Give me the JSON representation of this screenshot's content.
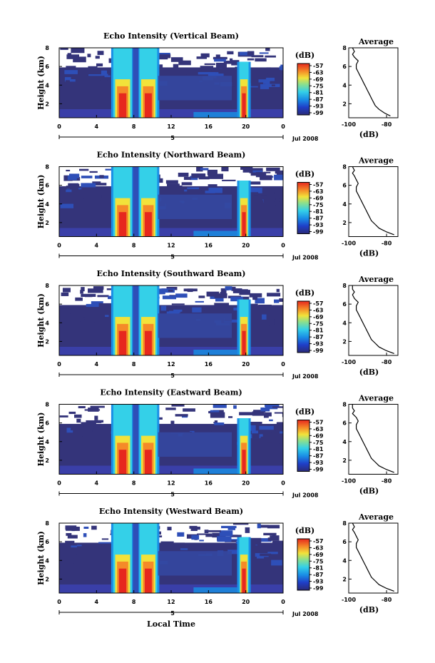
{
  "figure": {
    "xlabel_bottom": "Local Time",
    "date_label": "Jul 2008",
    "day_label": "5"
  },
  "colorbar": {
    "unit": "(dB)",
    "ticks": [
      "-57",
      "-63",
      "-69",
      "-75",
      "-81",
      "-87",
      "-93",
      "-99"
    ]
  },
  "chart_data": [
    {
      "type": "heatmap",
      "title": "Echo Intensity (Vertical Beam)",
      "ylabel": "Height (km)",
      "xticks": [
        "0",
        "4",
        "8",
        "12",
        "16",
        "20",
        "0"
      ],
      "xlim": [
        0,
        24
      ],
      "ylim": [
        0.5,
        8
      ],
      "yticks": [
        "2",
        "4",
        "6",
        "8"
      ],
      "color_range_db": [
        -99,
        -57
      ]
    },
    {
      "type": "heatmap",
      "title": "Echo Intensity (Northward Beam)",
      "ylabel": "Height (km)",
      "xticks": [
        "0",
        "4",
        "8",
        "12",
        "16",
        "20",
        "0"
      ],
      "xlim": [
        0,
        24
      ],
      "ylim": [
        0.5,
        8
      ],
      "yticks": [
        "2",
        "4",
        "6",
        "8"
      ],
      "color_range_db": [
        -99,
        -57
      ]
    },
    {
      "type": "heatmap",
      "title": "Echo Intensity (Southward Beam)",
      "ylabel": "Height (km)",
      "xticks": [
        "0",
        "4",
        "8",
        "12",
        "16",
        "20",
        "0"
      ],
      "xlim": [
        0,
        24
      ],
      "ylim": [
        0.5,
        8
      ],
      "yticks": [
        "2",
        "4",
        "6",
        "8"
      ],
      "color_range_db": [
        -99,
        -57
      ]
    },
    {
      "type": "heatmap",
      "title": "Echo Intensity (Eastward Beam)",
      "ylabel": "Height (km)",
      "xticks": [
        "0",
        "4",
        "8",
        "12",
        "16",
        "20",
        "0"
      ],
      "xlim": [
        0,
        24
      ],
      "ylim": [
        0.5,
        8
      ],
      "yticks": [
        "2",
        "4",
        "6",
        "8"
      ],
      "color_range_db": [
        -99,
        -57
      ]
    },
    {
      "type": "heatmap",
      "title": "Echo Intensity (Westward Beam)",
      "ylabel": "Height (km)",
      "xticks": [
        "0",
        "4",
        "8",
        "12",
        "16",
        "20",
        "0"
      ],
      "xlim": [
        0,
        24
      ],
      "ylim": [
        0.5,
        8
      ],
      "yticks": [
        "2",
        "4",
        "6",
        "8"
      ],
      "color_range_db": [
        -99,
        -57
      ]
    }
  ],
  "average_profiles": [
    {
      "type": "line",
      "title": "Average",
      "xlabel": "(dB)",
      "xticks": [
        "-100",
        "-80"
      ],
      "yticks": [
        "2",
        "4",
        "6",
        "8"
      ],
      "xlim": [
        -100,
        -74
      ],
      "ylim": [
        0.5,
        8
      ],
      "x": [
        -78,
        -81,
        -84,
        -86,
        -87,
        -88,
        -89,
        -90,
        -91,
        -92,
        -93,
        -94,
        -95,
        -96,
        -96,
        -95,
        -97,
        -98,
        -97,
        -98
      ],
      "y": [
        0.7,
        1.0,
        1.4,
        1.8,
        2.2,
        2.6,
        3.0,
        3.4,
        3.8,
        4.2,
        4.6,
        5.0,
        5.4,
        5.8,
        6.2,
        6.6,
        7.0,
        7.3,
        7.6,
        8.0
      ]
    },
    {
      "type": "line",
      "title": "Average",
      "xlabel": "(dB)",
      "xticks": [
        "-100",
        "-80"
      ],
      "yticks": [
        "2",
        "4",
        "6",
        "8"
      ],
      "xlim": [
        -100,
        -74
      ],
      "ylim": [
        0.5,
        8
      ],
      "x": [
        -76,
        -80,
        -84,
        -86,
        -88,
        -89,
        -90,
        -91,
        -92,
        -93,
        -94,
        -95,
        -96,
        -96,
        -95,
        -96,
        -97,
        -98,
        -97,
        -98
      ],
      "y": [
        0.7,
        1.0,
        1.4,
        1.8,
        2.2,
        2.6,
        3.0,
        3.4,
        3.8,
        4.2,
        4.6,
        5.0,
        5.4,
        5.8,
        6.2,
        6.6,
        7.0,
        7.3,
        7.6,
        8.0
      ]
    },
    {
      "type": "line",
      "title": "Average",
      "xlabel": "(dB)",
      "xticks": [
        "-100",
        "-80"
      ],
      "yticks": [
        "2",
        "4",
        "6",
        "8"
      ],
      "xlim": [
        -100,
        -74
      ],
      "ylim": [
        0.5,
        8
      ],
      "x": [
        -76,
        -80,
        -84,
        -86,
        -88,
        -89,
        -90,
        -91,
        -92,
        -93,
        -94,
        -95,
        -96,
        -96,
        -95,
        -97,
        -98,
        -97,
        -98,
        -98
      ],
      "y": [
        0.7,
        1.0,
        1.4,
        1.8,
        2.2,
        2.6,
        3.0,
        3.4,
        3.8,
        4.2,
        4.6,
        5.0,
        5.4,
        5.8,
        6.2,
        6.6,
        7.0,
        7.3,
        7.6,
        8.0
      ]
    },
    {
      "type": "line",
      "title": "Average",
      "xlabel": "(dB)",
      "xticks": [
        "-100",
        "-80"
      ],
      "yticks": [
        "2",
        "4",
        "6",
        "8"
      ],
      "xlim": [
        -100,
        -74
      ],
      "ylim": [
        0.5,
        8
      ],
      "x": [
        -76,
        -80,
        -84,
        -86,
        -88,
        -89,
        -90,
        -91,
        -92,
        -93,
        -94,
        -95,
        -96,
        -96,
        -95,
        -96,
        -98,
        -97,
        -98,
        -98
      ],
      "y": [
        0.7,
        1.0,
        1.4,
        1.8,
        2.2,
        2.6,
        3.0,
        3.4,
        3.8,
        4.2,
        4.6,
        5.0,
        5.4,
        5.8,
        6.2,
        6.6,
        7.0,
        7.3,
        7.6,
        8.0
      ]
    },
    {
      "type": "line",
      "title": "Average",
      "xlabel": "(dB)",
      "xticks": [
        "-100",
        "-80"
      ],
      "yticks": [
        "2",
        "4",
        "6",
        "8"
      ],
      "xlim": [
        -100,
        -74
      ],
      "ylim": [
        0.5,
        8
      ],
      "x": [
        -76,
        -80,
        -84,
        -86,
        -88,
        -89,
        -90,
        -91,
        -92,
        -93,
        -94,
        -95,
        -96,
        -96,
        -95,
        -96,
        -97,
        -98,
        -97,
        -98
      ],
      "y": [
        0.7,
        1.0,
        1.4,
        1.8,
        2.2,
        2.6,
        3.0,
        3.4,
        3.8,
        4.2,
        4.6,
        5.0,
        5.4,
        5.8,
        6.2,
        6.6,
        7.0,
        7.3,
        7.6,
        8.0
      ]
    }
  ]
}
